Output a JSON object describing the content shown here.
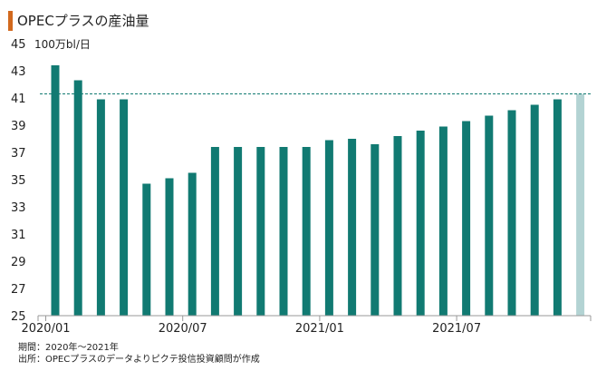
{
  "title": "OPECプラスの産油量",
  "accent_color": "#d2691e",
  "chart_data": {
    "type": "bar",
    "unit_label": "100万bl/日",
    "ylim": [
      25,
      45
    ],
    "yticks": [
      45,
      43,
      41,
      39,
      37,
      35,
      33,
      31,
      29,
      27,
      25
    ],
    "x_tick_labels": [
      {
        "index": 0,
        "label": "2020/01"
      },
      {
        "index": 6,
        "label": "2020/07"
      },
      {
        "index": 12,
        "label": "2021/01"
      },
      {
        "index": 18,
        "label": "2021/07"
      }
    ],
    "values": [
      43.4,
      42.3,
      40.9,
      40.9,
      34.7,
      35.1,
      35.5,
      37.4,
      37.4,
      37.4,
      37.4,
      37.4,
      37.9,
      38.0,
      37.6,
      38.2,
      38.6,
      38.9,
      39.3,
      39.7,
      40.1,
      40.5,
      40.9,
      41.3
    ],
    "bar_colors": {
      "actual": "#117a72",
      "highlight": "#b3d3d3"
    },
    "highlight_index": 23,
    "reference_line": {
      "value": 41.3,
      "style": "dashed",
      "color": "#117a72"
    },
    "grid": false
  },
  "notes": {
    "period": "期間：2020年～2021年",
    "source": "出所：OPECプラスのデータよりピクテ投信投資顧問が作成"
  }
}
